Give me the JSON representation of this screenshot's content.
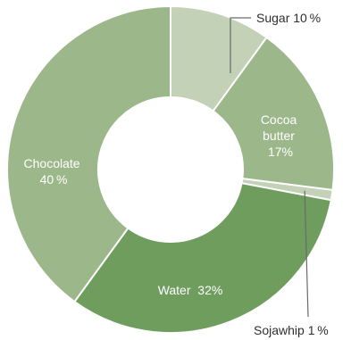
{
  "chart_data": {
    "type": "pie",
    "variant": "donut",
    "title": "",
    "slices": [
      {
        "name": "Sugar",
        "value": 10,
        "label": "Sugar 10 %",
        "color": "#c3d1b6"
      },
      {
        "name": "Cocoa butter",
        "value": 17,
        "label_lines": [
          "Cocoa",
          "butter",
          "17%"
        ],
        "color": "#9cb88a"
      },
      {
        "name": "Sojawhip",
        "value": 1,
        "label": "Sojawhip 1 %",
        "color": "#c3d1b6"
      },
      {
        "name": "Water",
        "value": 32,
        "label": "Water  32%",
        "color": "#6e9d5e"
      },
      {
        "name": "Chocolate",
        "value": 40,
        "label_lines": [
          "Chocolate",
          "40 %"
        ],
        "color": "#9cb88a"
      }
    ],
    "legend": "none"
  }
}
